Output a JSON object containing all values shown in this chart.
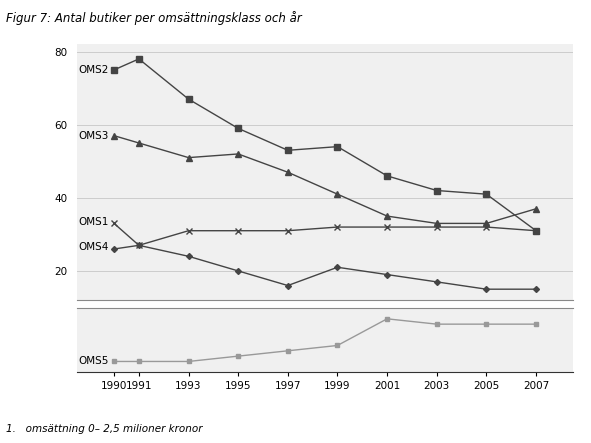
{
  "title": "Figur 7: Antal butiker per omsättningsklass och år",
  "footnote": "1.   omsättning 0– 2,5 milioner kronor",
  "years": [
    1990,
    1991,
    1993,
    1995,
    1997,
    1999,
    2001,
    2003,
    2005,
    2007
  ],
  "OMS2": [
    75,
    78,
    67,
    59,
    53,
    54,
    46,
    42,
    41,
    31
  ],
  "OMS3": [
    57,
    55,
    51,
    52,
    47,
    41,
    35,
    33,
    33,
    37
  ],
  "OMS1": [
    33,
    27,
    31,
    31,
    31,
    32,
    32,
    32,
    32,
    31
  ],
  "OMS4": [
    26,
    27,
    24,
    20,
    16,
    21,
    19,
    17,
    15,
    15
  ],
  "OMS5": [
    2,
    2,
    2,
    3,
    4,
    5,
    10,
    9,
    9,
    9
  ],
  "upper_ylim": [
    12,
    82
  ],
  "lower_ylim": [
    0,
    12
  ],
  "upper_yticks": [
    20,
    40,
    60,
    80
  ],
  "lower_yticks": [],
  "xticks": [
    1990,
    1991,
    1993,
    1995,
    1997,
    1999,
    2001,
    2003,
    2005,
    2007
  ],
  "xlim": [
    1988.5,
    2008.5
  ],
  "figsize": [
    5.91,
    4.43
  ],
  "dpi": 100,
  "bg_color": "#f0f0f0",
  "line_color_dark": "#444444",
  "line_color_light": "#999999",
  "grid_color": "#cccccc",
  "title_fontsize": 8.5,
  "label_fontsize": 7.5,
  "tick_fontsize": 7.5,
  "footnote_fontsize": 7.5,
  "upper_ratio": 4,
  "lower_ratio": 1
}
